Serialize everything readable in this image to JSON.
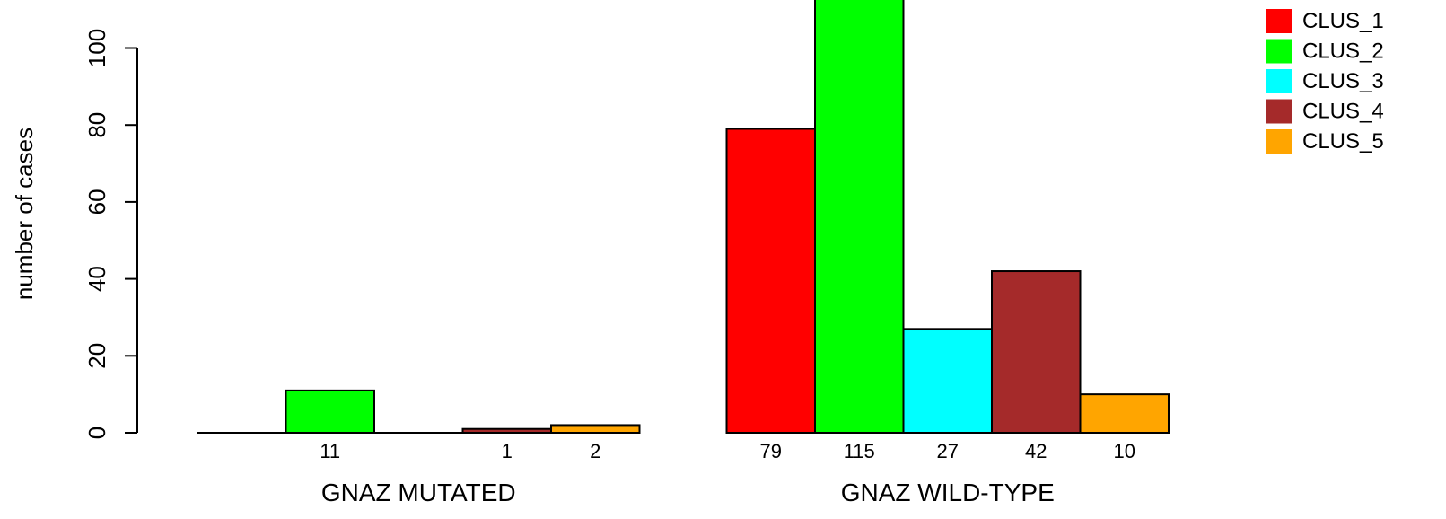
{
  "chart_data": {
    "type": "bar",
    "title": "",
    "xlabel": "",
    "ylabel": "number of cases",
    "ylim": [
      0,
      115
    ],
    "yticks": [
      0,
      20,
      40,
      60,
      80,
      100
    ],
    "grid": false,
    "legend_position": "top-right",
    "categories": [
      "GNAZ MUTATED",
      "GNAZ WILD-TYPE"
    ],
    "series": [
      {
        "name": "CLUS_1",
        "color": "#ff0000",
        "values": [
          0,
          79
        ],
        "labels": [
          "",
          "79"
        ]
      },
      {
        "name": "CLUS_2",
        "color": "#00ff00",
        "values": [
          11,
          115
        ],
        "labels": [
          "11",
          "115"
        ]
      },
      {
        "name": "CLUS_3",
        "color": "#00ffff",
        "values": [
          0,
          27
        ],
        "labels": [
          "",
          "27"
        ]
      },
      {
        "name": "CLUS_4",
        "color": "#a52a2a",
        "values": [
          1,
          42
        ],
        "labels": [
          "1",
          "42"
        ]
      },
      {
        "name": "CLUS_5",
        "color": "#ffa500",
        "values": [
          2,
          10
        ],
        "labels": [
          "2",
          "10"
        ]
      }
    ]
  }
}
